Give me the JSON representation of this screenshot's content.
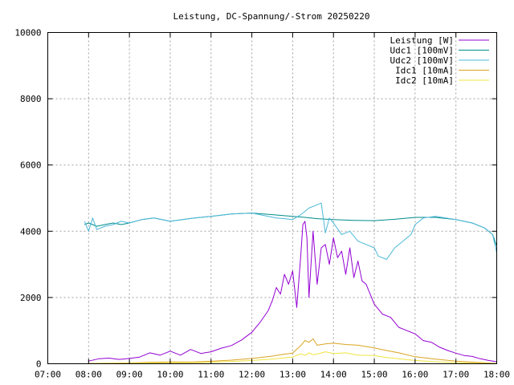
{
  "chart_data": {
    "type": "line",
    "title": "Leistung, DC-Spannung/-Strom 20250220",
    "xlabel": "",
    "ylabel": "",
    "x_tick_labels": [
      "07:00",
      "08:00",
      "09:00",
      "10:00",
      "11:00",
      "12:00",
      "13:00",
      "14:00",
      "15:00",
      "16:00",
      "17:00",
      "18:00"
    ],
    "xlim": [
      7,
      18
    ],
    "ylim": [
      0,
      10000
    ],
    "y_ticks": [
      0,
      2000,
      4000,
      6000,
      8000,
      10000
    ],
    "grid": true,
    "legend_position": "top-right",
    "series": [
      {
        "name": "Leistung [W]",
        "color": "#9400d3",
        "x": [
          8.0,
          8.25,
          8.5,
          8.75,
          9.0,
          9.25,
          9.5,
          9.75,
          10.0,
          10.25,
          10.5,
          10.75,
          11.0,
          11.25,
          11.5,
          11.75,
          12.0,
          12.2,
          12.4,
          12.5,
          12.6,
          12.7,
          12.8,
          12.9,
          13.0,
          13.1,
          13.2,
          13.25,
          13.3,
          13.35,
          13.4,
          13.5,
          13.6,
          13.7,
          13.8,
          13.9,
          14.0,
          14.1,
          14.2,
          14.3,
          14.4,
          14.5,
          14.6,
          14.7,
          14.8,
          15.0,
          15.2,
          15.4,
          15.6,
          15.8,
          16.0,
          16.2,
          16.4,
          16.6,
          16.8,
          17.0,
          17.2,
          17.4,
          17.6,
          17.8,
          18.0
        ],
        "y": [
          80,
          150,
          170,
          130,
          160,
          200,
          330,
          260,
          380,
          260,
          430,
          310,
          360,
          470,
          550,
          720,
          950,
          1250,
          1600,
          1900,
          2300,
          2100,
          2700,
          2400,
          2800,
          1700,
          3300,
          4200,
          4300,
          3800,
          2000,
          4000,
          2400,
          3500,
          3600,
          3000,
          3800,
          3200,
          3400,
          2700,
          3500,
          2600,
          3100,
          2500,
          2400,
          1800,
          1500,
          1400,
          1100,
          1000,
          900,
          700,
          650,
          500,
          400,
          320,
          250,
          220,
          150,
          100,
          60
        ]
      },
      {
        "name": "Udc1 [100mV]",
        "color": "#008b8b",
        "x": [
          7.9,
          8.0,
          8.2,
          8.4,
          8.6,
          8.8,
          9.0,
          9.3,
          9.6,
          10.0,
          10.3,
          10.6,
          11.0,
          11.5,
          12.0,
          12.5,
          13.0,
          13.3,
          13.6,
          14.0,
          14.5,
          15.0,
          15.5,
          16.0,
          16.5,
          17.0,
          17.4,
          17.7,
          17.9,
          18.0
        ],
        "y": [
          4200,
          4250,
          4150,
          4200,
          4250,
          4200,
          4250,
          4350,
          4400,
          4300,
          4350,
          4400,
          4450,
          4520,
          4550,
          4500,
          4450,
          4420,
          4380,
          4350,
          4330,
          4320,
          4360,
          4420,
          4420,
          4350,
          4250,
          4100,
          3900,
          3550
        ]
      },
      {
        "name": "Udc2 [100mV]",
        "color": "#4cb8d8",
        "x": [
          7.9,
          8.0,
          8.1,
          8.2,
          8.4,
          8.6,
          8.8,
          9.0,
          9.3,
          9.6,
          10.0,
          10.3,
          10.6,
          11.0,
          11.5,
          12.0,
          12.4,
          12.6,
          12.8,
          13.0,
          13.2,
          13.4,
          13.6,
          13.7,
          13.8,
          13.9,
          14.0,
          14.2,
          14.4,
          14.6,
          14.8,
          15.0,
          15.1,
          15.3,
          15.5,
          15.7,
          15.9,
          16.0,
          16.2,
          16.5,
          17.0,
          17.4,
          17.7,
          17.9,
          18.0
        ],
        "y": [
          4300,
          4000,
          4400,
          4050,
          4150,
          4200,
          4300,
          4250,
          4350,
          4400,
          4300,
          4350,
          4400,
          4450,
          4520,
          4550,
          4450,
          4400,
          4380,
          4350,
          4500,
          4700,
          4800,
          4850,
          3950,
          4400,
          4250,
          3900,
          4000,
          3700,
          3600,
          3500,
          3250,
          3150,
          3500,
          3700,
          3900,
          4200,
          4400,
          4450,
          4350,
          4250,
          4100,
          3900,
          3350
        ]
      },
      {
        "name": "Idc1 [10mA]",
        "color": "#daa520",
        "x": [
          8.0,
          8.5,
          9.0,
          9.5,
          10.0,
          10.5,
          11.0,
          11.5,
          12.0,
          12.5,
          12.8,
          13.0,
          13.2,
          13.3,
          13.4,
          13.5,
          13.6,
          13.8,
          14.0,
          14.3,
          14.6,
          15.0,
          15.3,
          15.6,
          16.0,
          16.5,
          17.0,
          17.5,
          18.0
        ],
        "y": [
          10,
          20,
          25,
          40,
          55,
          50,
          75,
          110,
          160,
          230,
          290,
          320,
          550,
          700,
          650,
          750,
          560,
          600,
          620,
          580,
          560,
          480,
          400,
          330,
          210,
          140,
          80,
          40,
          10
        ]
      },
      {
        "name": "Idc2 [10mA]",
        "color": "#f0e442",
        "x": [
          8.0,
          8.5,
          9.0,
          9.5,
          10.0,
          10.5,
          11.0,
          11.5,
          12.0,
          12.5,
          12.8,
          13.0,
          13.2,
          13.3,
          13.4,
          13.5,
          13.6,
          13.8,
          14.0,
          14.3,
          14.6,
          15.0,
          15.3,
          15.6,
          16.0,
          16.5,
          17.0,
          17.5,
          18.0
        ],
        "y": [
          5,
          12,
          15,
          25,
          35,
          30,
          45,
          70,
          100,
          140,
          180,
          200,
          300,
          250,
          330,
          270,
          290,
          360,
          310,
          330,
          260,
          250,
          190,
          150,
          100,
          60,
          30,
          15,
          5
        ]
      }
    ]
  }
}
